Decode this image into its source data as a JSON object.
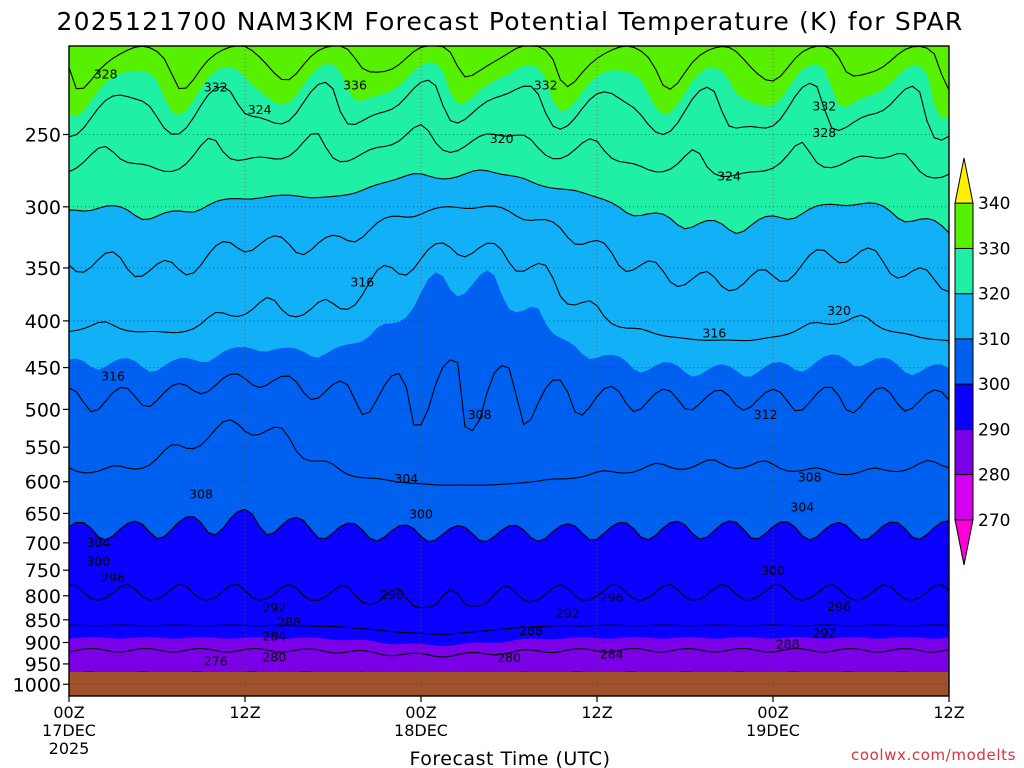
{
  "chart_data": {
    "type": "contour",
    "title": "2025121700 NAM3KM Forecast Potential Temperature (K) for SPAR",
    "xlabel": "Forecast Time (UTC)",
    "ylabel": "",
    "credit": "coolwx.com/modelts",
    "y_axis": {
      "unit": "hPa",
      "inverted": true,
      "range": [
        1030,
        200
      ],
      "ticks": [
        {
          "value": 250,
          "label": "250"
        },
        {
          "value": 300,
          "label": "300"
        },
        {
          "value": 350,
          "label": "350"
        },
        {
          "value": 400,
          "label": "400"
        },
        {
          "value": 450,
          "label": "450"
        },
        {
          "value": 500,
          "label": "500"
        },
        {
          "value": 550,
          "label": "550"
        },
        {
          "value": 600,
          "label": "600"
        },
        {
          "value": 650,
          "label": "650"
        },
        {
          "value": 700,
          "label": "700"
        },
        {
          "value": 750,
          "label": "750"
        },
        {
          "value": 800,
          "label": "800"
        },
        {
          "value": 850,
          "label": "850"
        },
        {
          "value": 900,
          "label": "900"
        },
        {
          "value": 950,
          "label": "950"
        },
        {
          "value": 1000,
          "label": "1000"
        }
      ]
    },
    "x_axis": {
      "unit": "hours",
      "range": [
        0,
        60
      ],
      "ticks": [
        {
          "value": 0,
          "line1": "00Z",
          "line2": "17DEC",
          "line3": "2025"
        },
        {
          "value": 12,
          "line1": "12Z",
          "line2": "",
          "line3": ""
        },
        {
          "value": 24,
          "line1": "00Z",
          "line2": "18DEC",
          "line3": ""
        },
        {
          "value": 36,
          "line1": "12Z",
          "line2": "",
          "line3": ""
        },
        {
          "value": 48,
          "line1": "00Z",
          "line2": "19DEC",
          "line3": ""
        },
        {
          "value": 60,
          "line1": "12Z",
          "line2": "",
          "line3": ""
        }
      ]
    },
    "colorbar": {
      "levels": [
        "270",
        "280",
        "290",
        "300",
        "310",
        "320",
        "330",
        "340"
      ],
      "band_colors": [
        "#ff00d8",
        "#d600f0",
        "#7b00e8",
        "#0a00ff",
        "#0060f0",
        "#12b0f6",
        "#1ff0a5",
        "#56f000",
        "#fff000"
      ]
    },
    "ground_color": "#a0522d",
    "contour_labels": [
      {
        "value": "328",
        "t": 2.5,
        "p": 215
      },
      {
        "value": "332",
        "t": 10.0,
        "p": 222
      },
      {
        "value": "336",
        "t": 19.5,
        "p": 221
      },
      {
        "value": "332",
        "t": 32.5,
        "p": 221
      },
      {
        "value": "332",
        "t": 51.5,
        "p": 233
      },
      {
        "value": "324",
        "t": 13.0,
        "p": 235
      },
      {
        "value": "328",
        "t": 51.5,
        "p": 249
      },
      {
        "value": "320",
        "t": 29.5,
        "p": 253
      },
      {
        "value": "324",
        "t": 45.0,
        "p": 278
      },
      {
        "value": "316",
        "t": 20.0,
        "p": 363
      },
      {
        "value": "320",
        "t": 52.5,
        "p": 390
      },
      {
        "value": "316",
        "t": 44.0,
        "p": 413
      },
      {
        "value": "316",
        "t": 3.0,
        "p": 460
      },
      {
        "value": "308",
        "t": 28.0,
        "p": 507
      },
      {
        "value": "312",
        "t": 47.5,
        "p": 507
      },
      {
        "value": "308",
        "t": 50.5,
        "p": 594
      },
      {
        "value": "304",
        "t": 23.0,
        "p": 596
      },
      {
        "value": "308",
        "t": 9.0,
        "p": 620
      },
      {
        "value": "304",
        "t": 50.0,
        "p": 640
      },
      {
        "value": "300",
        "t": 24.0,
        "p": 652
      },
      {
        "value": "304",
        "t": 2.0,
        "p": 700
      },
      {
        "value": "300",
        "t": 2.0,
        "p": 734
      },
      {
        "value": "300",
        "t": 48.0,
        "p": 752
      },
      {
        "value": "296",
        "t": 3.0,
        "p": 765
      },
      {
        "value": "296",
        "t": 22.0,
        "p": 798
      },
      {
        "value": "296",
        "t": 37.0,
        "p": 804
      },
      {
        "value": "296",
        "t": 52.5,
        "p": 823
      },
      {
        "value": "292",
        "t": 14.0,
        "p": 825
      },
      {
        "value": "292",
        "t": 34.0,
        "p": 837
      },
      {
        "value": "288",
        "t": 15.0,
        "p": 856
      },
      {
        "value": "288",
        "t": 31.5,
        "p": 874
      },
      {
        "value": "292",
        "t": 51.5,
        "p": 880
      },
      {
        "value": "284",
        "t": 14.0,
        "p": 887
      },
      {
        "value": "288",
        "t": 49.0,
        "p": 905
      },
      {
        "value": "280",
        "t": 14.0,
        "p": 935
      },
      {
        "value": "276",
        "t": 10.0,
        "p": 944
      },
      {
        "value": "280",
        "t": 30.0,
        "p": 936
      },
      {
        "value": "284",
        "t": 37.0,
        "p": 928
      }
    ]
  }
}
